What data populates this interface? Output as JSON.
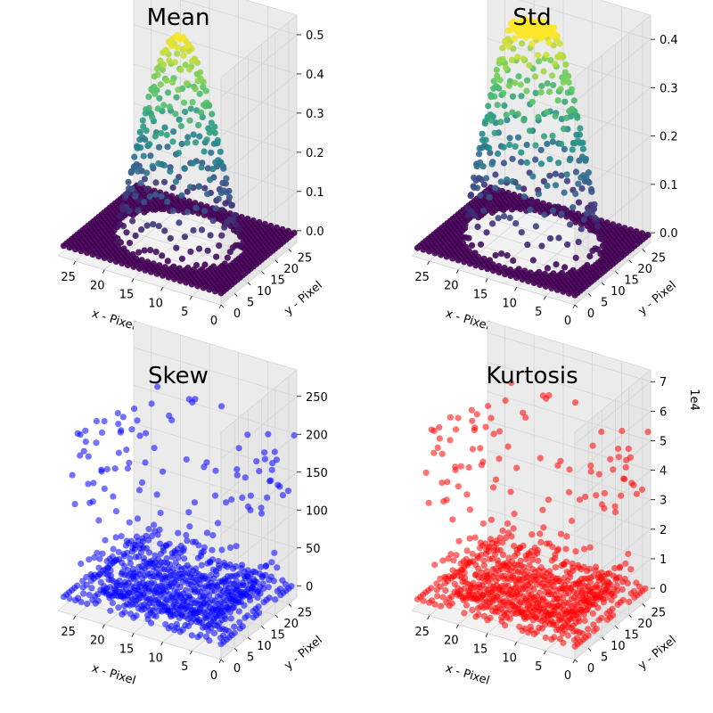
{
  "chart_data": [
    {
      "type": "scatter3d",
      "title": "Mean",
      "xlabel": "x - Pixel",
      "ylabel": "y - Pixel",
      "zlabel": "",
      "xlim": [
        0,
        28
      ],
      "ylim": [
        0,
        28
      ],
      "zlim": [
        -0.03,
        0.55
      ],
      "xticks": [
        0,
        5,
        10,
        15,
        20,
        25
      ],
      "yticks": [
        0,
        5,
        10,
        15,
        20,
        25
      ],
      "zticks": [
        0.0,
        0.1,
        0.2,
        0.3,
        0.4,
        0.5
      ],
      "zticklabels": [
        "0.0",
        "0.1",
        "0.2",
        "0.3",
        "0.4",
        "0.5"
      ],
      "offset_text": "",
      "grid_n": 28,
      "colormap": "viridis",
      "color": "",
      "surface": "bump",
      "peak": 0.52
    },
    {
      "type": "scatter3d",
      "title": "Std",
      "xlabel": "x - Pixel",
      "ylabel": "y - Pixel",
      "zlabel": "",
      "xlim": [
        0,
        28
      ],
      "ylim": [
        0,
        28
      ],
      "zlim": [
        -0.02,
        0.45
      ],
      "xticks": [
        0,
        5,
        10,
        15,
        20,
        25
      ],
      "yticks": [
        0,
        5,
        10,
        15,
        20,
        25
      ],
      "zticks": [
        0.0,
        0.1,
        0.2,
        0.3,
        0.4
      ],
      "zticklabels": [
        "0.0",
        "0.1",
        "0.2",
        "0.3",
        "0.4"
      ],
      "offset_text": "",
      "grid_n": 28,
      "colormap": "viridis",
      "color": "",
      "surface": "plateau",
      "peak": 0.44
    },
    {
      "type": "scatter3d",
      "title": "Skew",
      "xlabel": "x - Pixel",
      "ylabel": "y - Pixel",
      "zlabel": "",
      "xlim": [
        0,
        28
      ],
      "ylim": [
        0,
        28
      ],
      "zlim": [
        -15,
        285
      ],
      "xticks": [
        0,
        5,
        10,
        15,
        20,
        25
      ],
      "yticks": [
        0,
        5,
        10,
        15,
        20,
        25
      ],
      "zticks": [
        0,
        50,
        100,
        150,
        200,
        250
      ],
      "zticklabels": [
        "0",
        "50",
        "100",
        "150",
        "200",
        "250"
      ],
      "offset_text": "",
      "grid_n": 28,
      "colormap": "",
      "color": "#0000ff",
      "surface": "edges",
      "peak": 270
    },
    {
      "type": "scatter3d",
      "title": "Kurtosis",
      "xlabel": "x - Pixel",
      "ylabel": "y - Pixel",
      "zlabel": "",
      "xlim": [
        0,
        28
      ],
      "ylim": [
        0,
        28
      ],
      "zlim": [
        -0.3,
        7.4
      ],
      "xticks": [
        0,
        5,
        10,
        15,
        20,
        25
      ],
      "yticks": [
        0,
        5,
        10,
        15,
        20,
        25
      ],
      "zticks": [
        0,
        1,
        2,
        3,
        4,
        5,
        6,
        7
      ],
      "zticklabels": [
        "0",
        "1",
        "2",
        "3",
        "4",
        "5",
        "6",
        "7"
      ],
      "offset_text": "1e4",
      "grid_n": 28,
      "colormap": "",
      "color": "#ff0000",
      "surface": "edges",
      "peak": 7.2
    }
  ]
}
